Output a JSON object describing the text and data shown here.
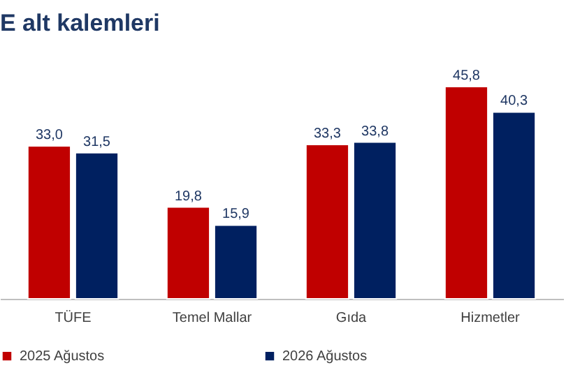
{
  "chart_data": {
    "type": "bar",
    "title": "E alt kalemleri",
    "categories": [
      "TÜFE",
      "Temel Mallar",
      "Gıda",
      "Hizmetler"
    ],
    "series": [
      {
        "name": "2025 Ağustos",
        "color": "#c00000",
        "values": [
          33.0,
          19.8,
          33.3,
          45.8
        ],
        "value_labels": [
          "33,0",
          "19,8",
          "33,3",
          "45,8"
        ]
      },
      {
        "name": "2026 Ağustos",
        "color": "#002060",
        "values": [
          31.5,
          15.9,
          33.8,
          40.3
        ],
        "value_labels": [
          "31,5",
          "15,9",
          "33,8",
          "40,3"
        ]
      }
    ],
    "grid": false,
    "legend": "bottom",
    "tick_labels": "x"
  }
}
